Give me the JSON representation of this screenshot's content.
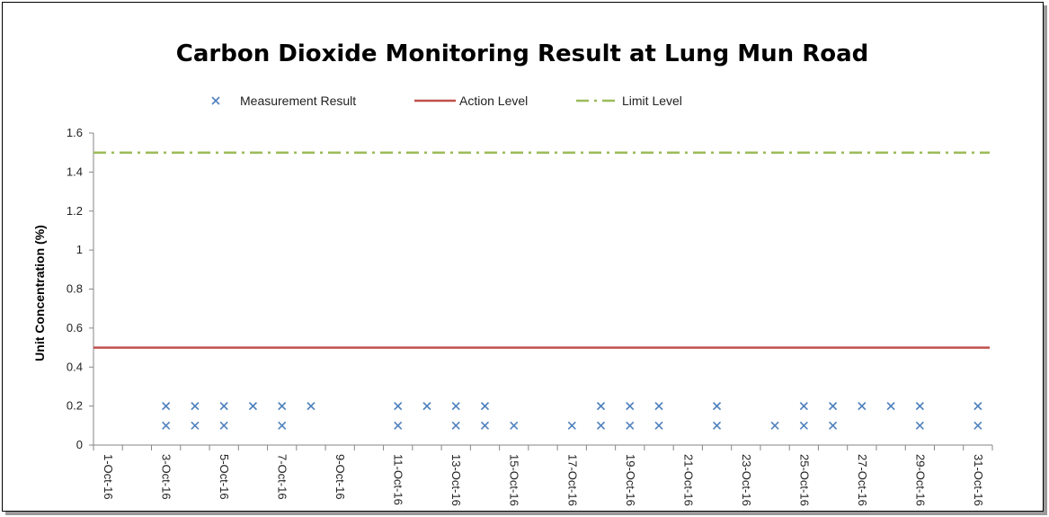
{
  "chart_data": {
    "type": "scatter",
    "title": "Carbon Dioxide Monitoring Result at Lung Mun Road",
    "xlabel": "",
    "ylabel": "Unit Concentration (%)",
    "ylim": [
      0,
      1.6
    ],
    "yticks": [
      "0",
      "0.2",
      "0.4",
      "0.6",
      "0.8",
      "1",
      "1.2",
      "1.4",
      "1.6"
    ],
    "xlim": [
      "2016-10-01",
      "2016-10-31"
    ],
    "xtick_labels": [
      "1-Oct-16",
      "3-Oct-16",
      "5-Oct-16",
      "7-Oct-16",
      "9-Oct-16",
      "11-Oct-16",
      "13-Oct-16",
      "15-Oct-16",
      "17-Oct-16",
      "19-Oct-16",
      "21-Oct-16",
      "23-Oct-16",
      "25-Oct-16",
      "27-Oct-16",
      "29-Oct-16",
      "31-Oct-16"
    ],
    "grid": false,
    "legend_position": "top",
    "series": [
      {
        "name": "Measurement Result",
        "kind": "scatter",
        "marker": "x",
        "color": "#4f81bd",
        "points": [
          [
            "2016-10-03",
            0.2
          ],
          [
            "2016-10-03",
            0.1
          ],
          [
            "2016-10-04",
            0.2
          ],
          [
            "2016-10-04",
            0.1
          ],
          [
            "2016-10-05",
            0.2
          ],
          [
            "2016-10-05",
            0.1
          ],
          [
            "2016-10-06",
            0.2
          ],
          [
            "2016-10-07",
            0.2
          ],
          [
            "2016-10-07",
            0.1
          ],
          [
            "2016-10-08",
            0.2
          ],
          [
            "2016-10-11",
            0.2
          ],
          [
            "2016-10-11",
            0.1
          ],
          [
            "2016-10-12",
            0.2
          ],
          [
            "2016-10-13",
            0.2
          ],
          [
            "2016-10-13",
            0.1
          ],
          [
            "2016-10-14",
            0.2
          ],
          [
            "2016-10-14",
            0.1
          ],
          [
            "2016-10-15",
            0.1
          ],
          [
            "2016-10-17",
            0.1
          ],
          [
            "2016-10-18",
            0.2
          ],
          [
            "2016-10-18",
            0.1
          ],
          [
            "2016-10-19",
            0.2
          ],
          [
            "2016-10-19",
            0.1
          ],
          [
            "2016-10-20",
            0.2
          ],
          [
            "2016-10-20",
            0.1
          ],
          [
            "2016-10-22",
            0.2
          ],
          [
            "2016-10-22",
            0.1
          ],
          [
            "2016-10-24",
            0.1
          ],
          [
            "2016-10-25",
            0.2
          ],
          [
            "2016-10-25",
            0.1
          ],
          [
            "2016-10-26",
            0.2
          ],
          [
            "2016-10-26",
            0.1
          ],
          [
            "2016-10-27",
            0.2
          ],
          [
            "2016-10-28",
            0.2
          ],
          [
            "2016-10-29",
            0.2
          ],
          [
            "2016-10-29",
            0.1
          ],
          [
            "2016-10-31",
            0.2
          ],
          [
            "2016-10-31",
            0.1
          ]
        ]
      },
      {
        "name": "Action Level",
        "kind": "line",
        "style": "solid",
        "color": "#c0504d",
        "x": [
          "2016-10-01",
          "2016-10-31"
        ],
        "values": [
          0.5,
          0.5
        ]
      },
      {
        "name": "Limit Level",
        "kind": "line",
        "style": "dash-dot",
        "color": "#9bbb59",
        "x": [
          "2016-10-01",
          "2016-10-31"
        ],
        "values": [
          1.5,
          1.5
        ]
      }
    ]
  }
}
